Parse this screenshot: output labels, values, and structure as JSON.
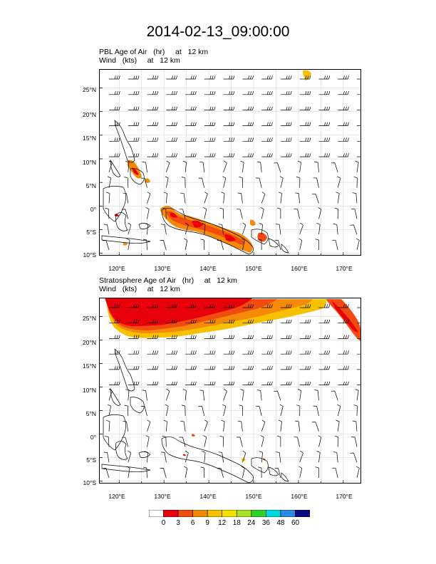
{
  "title": "2014-02-13_09:00:00",
  "panels": [
    {
      "id": "pbl",
      "line1": [
        "PBL Age of Air",
        "(hr)",
        "at",
        "12 km"
      ],
      "line2": [
        "Wind",
        "(kts)",
        "at",
        "12 km"
      ]
    },
    {
      "id": "strat",
      "line1": [
        "Stratosphere Age of Air",
        "(hr)",
        "at",
        "12 km"
      ],
      "line2": [
        "Wind",
        "(kts)",
        "at",
        "12 km"
      ]
    }
  ],
  "lat_labels": [
    "25°N",
    "20°N",
    "15°N",
    "10°N",
    "5°N",
    "0°",
    "5°S",
    "10°S"
  ],
  "lon_labels": [
    "120°E",
    "130°E",
    "140°E",
    "150°E",
    "160°E",
    "170°E"
  ],
  "map_extent": {
    "lon": [
      115.5,
      174
    ],
    "lat": [
      -10.5,
      29
    ]
  },
  "colorbar": {
    "labels": [
      "0",
      "3",
      "6",
      "9",
      "12",
      "18",
      "24",
      "36",
      "48",
      "60"
    ],
    "colors": [
      "#ffffff",
      "#e8000b",
      "#f24b0f",
      "#f58a0a",
      "#f7c000",
      "#f5e100",
      "#a8e32a",
      "#2ed12c",
      "#00d8e0",
      "#2b8ae6",
      "#0a0a84"
    ]
  },
  "colors": {
    "red": "#e8000b",
    "orange_red": "#f24b0f",
    "orange": "#f58a0a",
    "gold": "#f7c000"
  }
}
